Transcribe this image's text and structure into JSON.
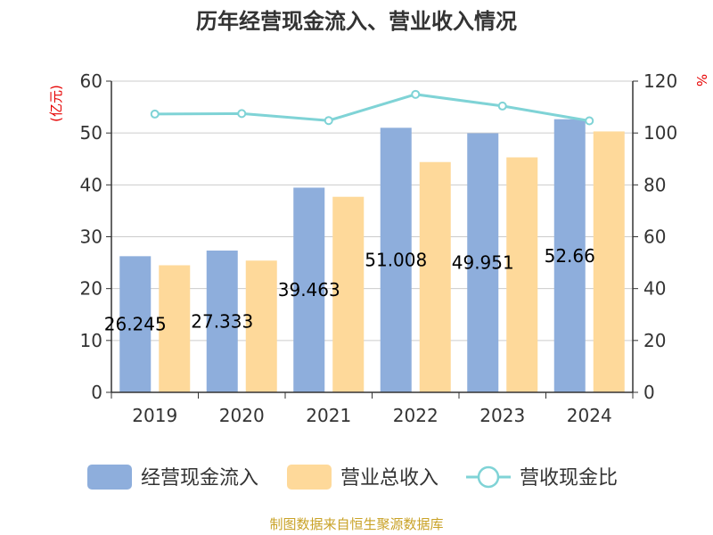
{
  "chart_data": {
    "type": "bar",
    "title": "历年经营现金流入、营业收入情况",
    "categories": [
      "2019",
      "2020",
      "2021",
      "2022",
      "2023",
      "2024"
    ],
    "y_left": {
      "unit": "(亿元)",
      "min": 0,
      "max": 60,
      "ticks": [
        0,
        10,
        20,
        30,
        40,
        50,
        60
      ]
    },
    "y_right": {
      "unit": "%",
      "min": 0,
      "max": 120,
      "ticks": [
        0,
        20,
        40,
        60,
        80,
        100,
        120
      ]
    },
    "series": [
      {
        "name": "经营现金流入",
        "type": "bar",
        "axis": "left",
        "color": "#8eaedc",
        "values": [
          26.245,
          27.333,
          39.463,
          51.008,
          49.951,
          52.66
        ],
        "labels": [
          "26.245",
          "27.333",
          "39.463",
          "51.008",
          "49.951",
          "52.66"
        ]
      },
      {
        "name": "营业总收入",
        "type": "bar",
        "axis": "left",
        "color": "#fed99a",
        "values": [
          24.5,
          25.4,
          37.7,
          44.4,
          45.3,
          50.3
        ]
      },
      {
        "name": "营收现金比",
        "type": "line",
        "axis": "right",
        "color": "#7fd3d6",
        "values": [
          107.3,
          107.5,
          104.8,
          114.9,
          110.4,
          104.7
        ]
      }
    ],
    "grid": true,
    "legend": "bottom"
  },
  "source": "制图数据来自恒生聚源数据库"
}
